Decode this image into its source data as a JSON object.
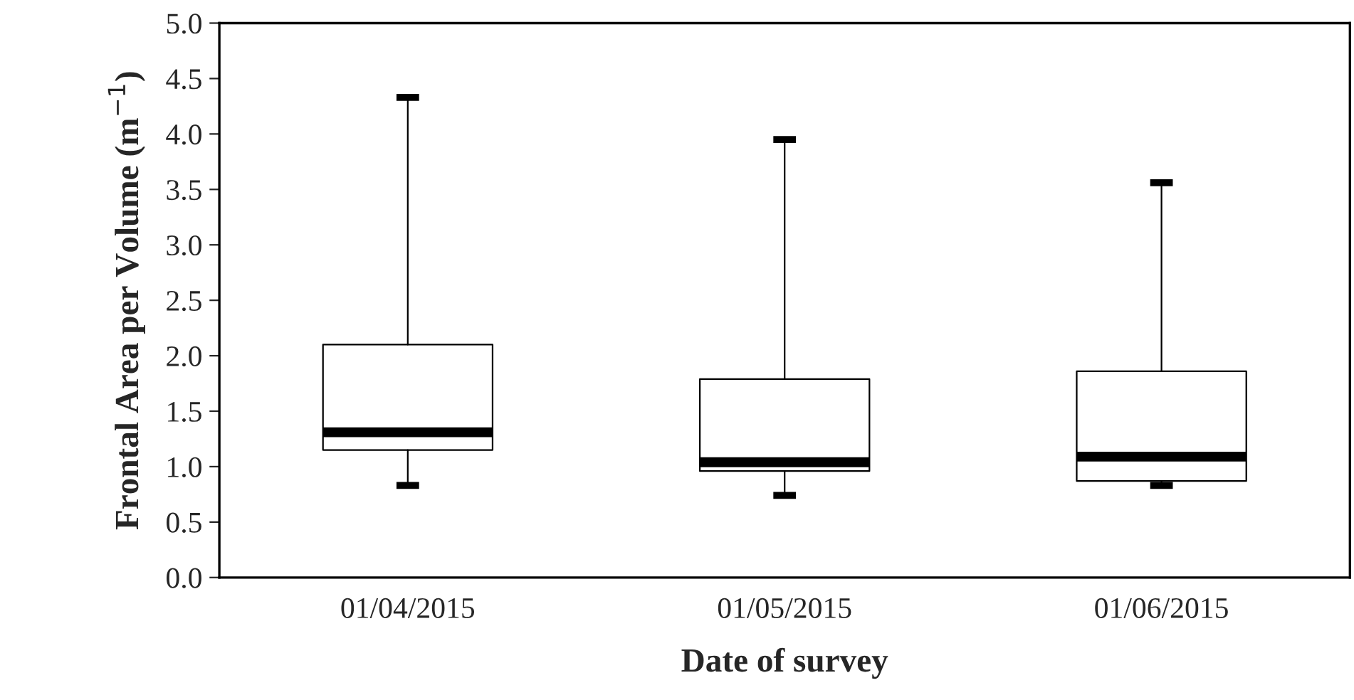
{
  "chart_data": {
    "type": "box",
    "xlabel": "Date of survey",
    "ylabel": "Frontal Area per Volume (m$^{−1}$)",
    "categories": [
      "01/04/2015",
      "01/05/2015",
      "01/06/2015"
    ],
    "boxes": [
      {
        "low": 0.83,
        "q1": 1.15,
        "median": 1.31,
        "q3": 2.1,
        "high": 4.33
      },
      {
        "low": 0.74,
        "q1": 0.96,
        "median": 1.04,
        "q3": 1.79,
        "high": 3.95
      },
      {
        "low": 0.83,
        "q1": 0.87,
        "median": 1.09,
        "q3": 1.86,
        "high": 3.56
      }
    ],
    "ylim": [
      0,
      5
    ],
    "yticks": [
      {
        "value": 0,
        "label": "0.0"
      },
      {
        "value": 0.5,
        "label": "0.5"
      },
      {
        "value": 1,
        "label": "1.0"
      },
      {
        "value": 1.5,
        "label": "1.5"
      },
      {
        "value": 2,
        "label": "2.0"
      },
      {
        "value": 2.5,
        "label": "2.5"
      },
      {
        "value": 3,
        "label": "3.0"
      },
      {
        "value": 3.5,
        "label": "3.5"
      },
      {
        "value": 4,
        "label": "4.0"
      },
      {
        "value": 4.5,
        "label": "4.5"
      },
      {
        "value": 5,
        "label": "5.0"
      }
    ],
    "grid": false
  }
}
